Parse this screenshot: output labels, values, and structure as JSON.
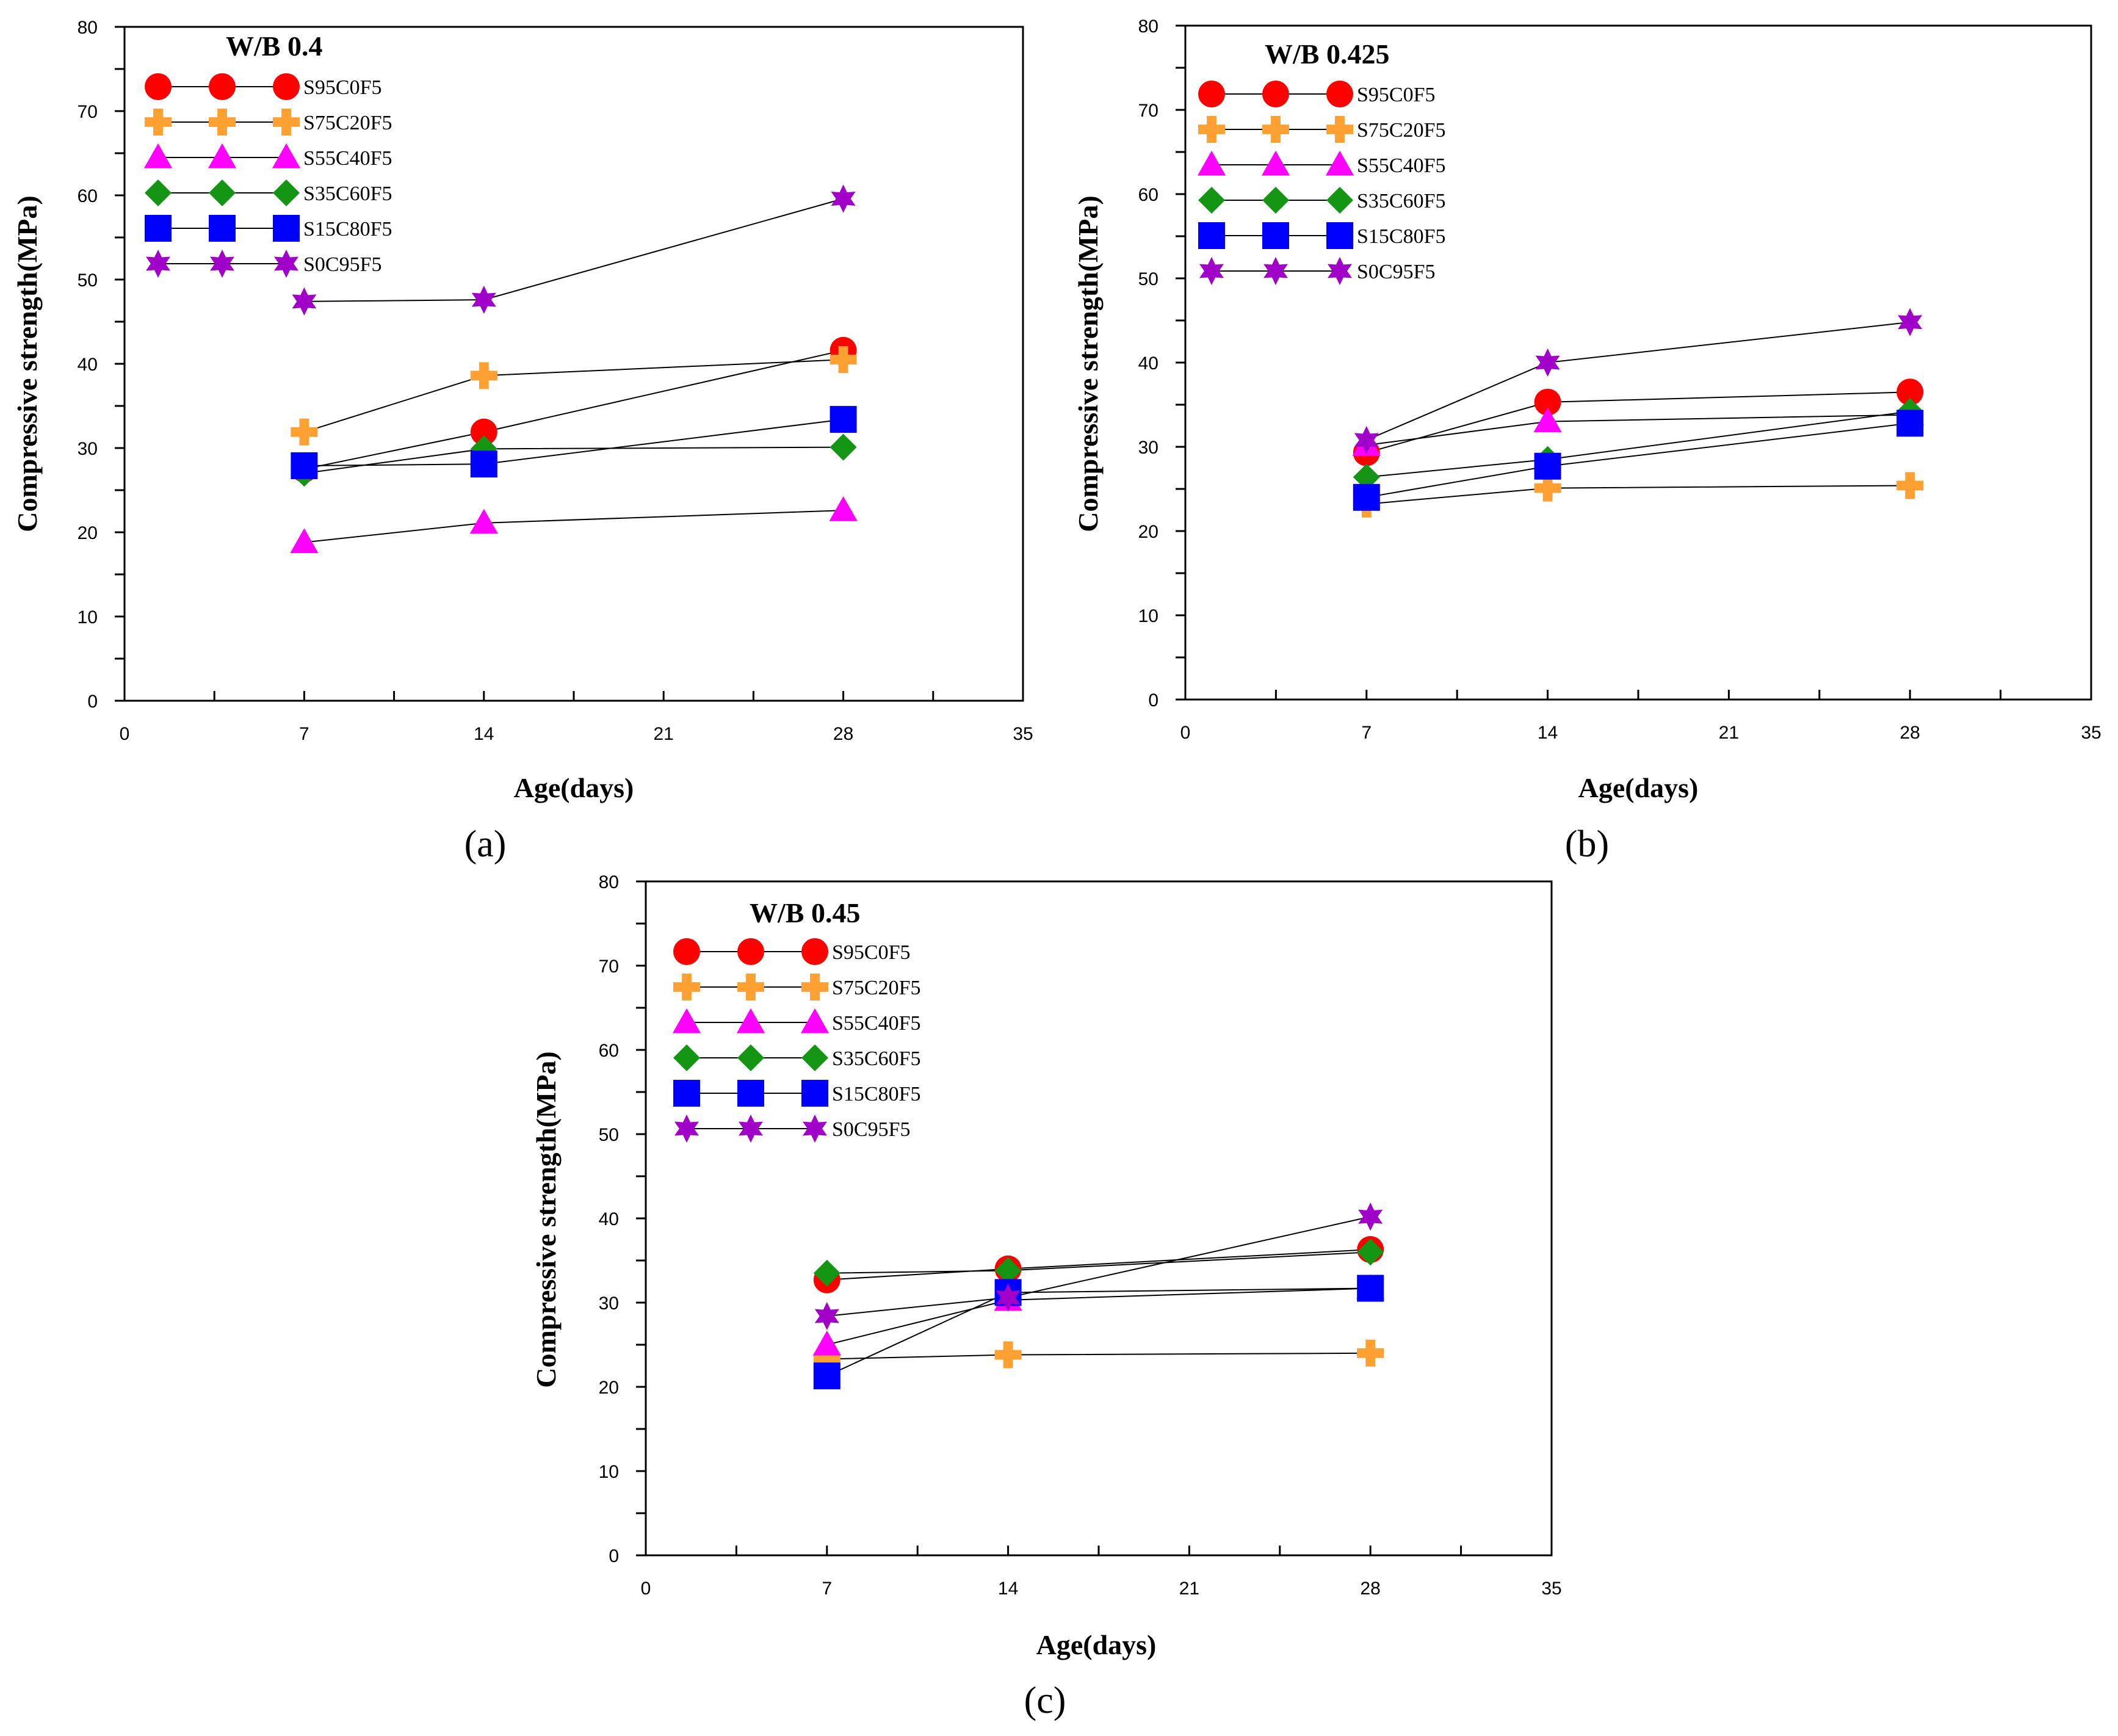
{
  "series_styles": [
    {
      "name": "S95C0F5",
      "marker": "circle",
      "color": "#ff0000"
    },
    {
      "name": "S75C20F5",
      "marker": "plus",
      "color": "#ffa033"
    },
    {
      "name": "S55C40F5",
      "marker": "triangle",
      "color": "#ff00ff"
    },
    {
      "name": "S35C60F5",
      "marker": "diamond",
      "color": "#149614"
    },
    {
      "name": "S15C80F5",
      "marker": "square",
      "color": "#0000ff"
    },
    {
      "name": "S0C95F5",
      "marker": "star",
      "color": "#a000c8"
    }
  ],
  "chart_data": [
    {
      "type": "line",
      "caption": "(a)",
      "title": "W/B 0.4",
      "xlabel": "Age(days)",
      "ylabel": "Compressive strength(MPa)",
      "xlim": [
        0,
        35
      ],
      "ylim": [
        0,
        80
      ],
      "xticks": [
        0,
        7,
        14,
        21,
        28,
        35
      ],
      "yticks": [
        0,
        10,
        20,
        30,
        40,
        50,
        60,
        70,
        80
      ],
      "x": [
        7,
        14,
        28
      ],
      "series": [
        {
          "name": "S95C0F5",
          "values": [
            27.5,
            31.9,
            41.6
          ]
        },
        {
          "name": "S75C20F5",
          "values": [
            31.9,
            38.6,
            40.5
          ]
        },
        {
          "name": "S55C40F5",
          "values": [
            18.8,
            21.1,
            22.6
          ]
        },
        {
          "name": "S35C60F5",
          "values": [
            27.0,
            29.9,
            30.1
          ]
        },
        {
          "name": "S15C80F5",
          "values": [
            27.9,
            28.1,
            33.4
          ]
        },
        {
          "name": "S0C95F5",
          "values": [
            47.4,
            47.6,
            59.6
          ]
        }
      ]
    },
    {
      "type": "line",
      "caption": "(b)",
      "title": "W/B 0.425",
      "xlabel": "Age(days)",
      "ylabel": "Compressive strength(MPa)",
      "xlim": [
        0,
        35
      ],
      "ylim": [
        0,
        80
      ],
      "xticks": [
        0,
        7,
        14,
        21,
        28,
        35
      ],
      "yticks": [
        0,
        10,
        20,
        30,
        40,
        50,
        60,
        70,
        80
      ],
      "x": [
        7,
        14,
        28
      ],
      "series": [
        {
          "name": "S95C0F5",
          "values": [
            29.3,
            35.3,
            36.5
          ]
        },
        {
          "name": "S75C20F5",
          "values": [
            23.2,
            25.1,
            25.4
          ]
        },
        {
          "name": "S55C40F5",
          "values": [
            30.2,
            33.0,
            33.8
          ]
        },
        {
          "name": "S35C60F5",
          "values": [
            26.4,
            28.5,
            34.2
          ]
        },
        {
          "name": "S15C80F5",
          "values": [
            24.0,
            27.7,
            32.8
          ]
        },
        {
          "name": "S0C95F5",
          "values": [
            30.8,
            40.0,
            44.8
          ]
        }
      ]
    },
    {
      "type": "line",
      "caption": "(c)",
      "title": "W/B 0.45",
      "xlabel": "Age(days)",
      "ylabel": "Compressive strength(MPa)",
      "xlim": [
        0,
        35
      ],
      "ylim": [
        0,
        80
      ],
      "xticks": [
        0,
        7,
        14,
        21,
        28,
        35
      ],
      "yticks": [
        0,
        10,
        20,
        30,
        40,
        50,
        60,
        70,
        80
      ],
      "x": [
        7,
        14,
        28
      ],
      "series": [
        {
          "name": "S95C0F5",
          "values": [
            32.7,
            34.0,
            36.3
          ]
        },
        {
          "name": "S75C20F5",
          "values": [
            23.3,
            23.8,
            24.0
          ]
        },
        {
          "name": "S55C40F5",
          "values": [
            25.0,
            30.3,
            31.7
          ]
        },
        {
          "name": "S35C60F5",
          "values": [
            33.5,
            33.8,
            36.0
          ]
        },
        {
          "name": "S15C80F5",
          "values": [
            21.3,
            31.2,
            31.7
          ]
        },
        {
          "name": "S0C95F5",
          "values": [
            28.4,
            30.6,
            40.2
          ]
        }
      ]
    }
  ]
}
